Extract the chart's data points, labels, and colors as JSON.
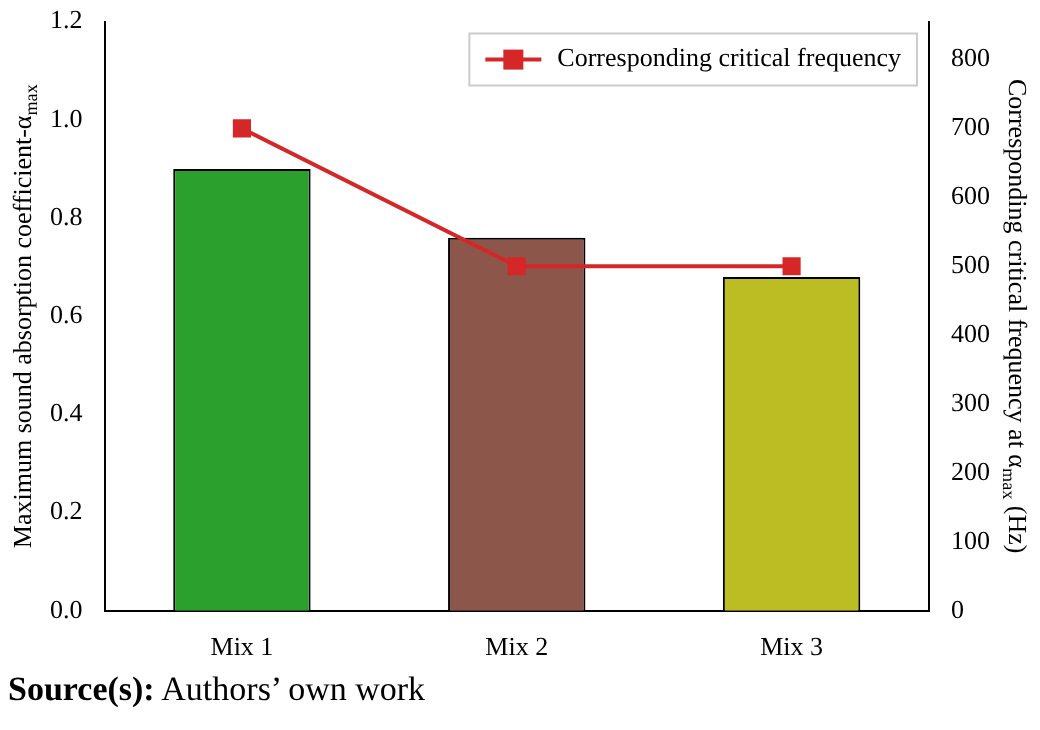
{
  "chart_data": {
    "type": "bar",
    "categories": [
      "Mix 1",
      "Mix 2",
      "Mix 3"
    ],
    "ylabel": "Maximum sound absorption coefficient-α$_{max}$",
    "y2label": "Corresponding critical frequency at α$_{max}$ (Hz)",
    "ylim": [
      0,
      1.2
    ],
    "yticks": [
      {
        "value": 0,
        "label": "0.0"
      },
      0.2,
      0.4,
      0.6,
      0.8,
      {
        "value": 1,
        "label": "1.0"
      },
      1.2
    ],
    "y2lim": [
      0,
      855
    ],
    "y2ticks": [
      0,
      100,
      200,
      300,
      400,
      500,
      600,
      700,
      800
    ],
    "series": [
      {
        "colors": [
          "#2ca02c",
          "#8c564b",
          "#bcbd22"
        ],
        "values": [
          0.9,
          0.76,
          0.68
        ]
      },
      {
        "type": "line",
        "name": "Corresponding critical frequency",
        "color": "#d62728",
        "axis": "y2",
        "values": [
          700,
          500,
          500
        ]
      }
    ],
    "marker": "square",
    "line_style": "solid",
    "legend": "top right",
    "grid": false,
    "annotations": [
      "Source(s): Authors’ own work"
    ]
  }
}
